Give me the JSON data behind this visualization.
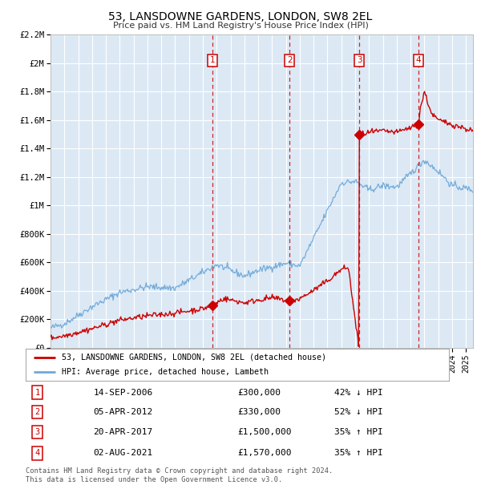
{
  "title": "53, LANSDOWNE GARDENS, LONDON, SW8 2EL",
  "subtitle": "Price paid vs. HM Land Registry's House Price Index (HPI)",
  "ylim": [
    0,
    2200000
  ],
  "xlim_start": 1995.0,
  "xlim_end": 2025.5,
  "yticks": [
    0,
    200000,
    400000,
    600000,
    800000,
    1000000,
    1200000,
    1400000,
    1600000,
    1800000,
    2000000,
    2200000
  ],
  "ytick_labels": [
    "£0",
    "£200K",
    "£400K",
    "£600K",
    "£800K",
    "£1M",
    "£1.2M",
    "£1.4M",
    "£1.6M",
    "£1.8M",
    "£2M",
    "£2.2M"
  ],
  "background_color": "#ffffff",
  "plot_bg_color": "#dce9f5",
  "grid_color": "#ffffff",
  "hpi_line_color": "#6fa8d8",
  "price_line_color": "#cc0000",
  "transaction_marker_color": "#cc0000",
  "dashed_line_color": "#cc0000",
  "transactions": [
    {
      "num": 1,
      "date": "14-SEP-2006",
      "price": 300000,
      "year": 2006.71,
      "label": "1"
    },
    {
      "num": 2,
      "date": "05-APR-2012",
      "price": 330000,
      "year": 2012.26,
      "label": "2"
    },
    {
      "num": 3,
      "date": "20-APR-2017",
      "price": 1500000,
      "year": 2017.3,
      "label": "3"
    },
    {
      "num": 4,
      "date": "02-AUG-2021",
      "price": 1570000,
      "year": 2021.58,
      "label": "4"
    }
  ],
  "legend_line1": "53, LANSDOWNE GARDENS, LONDON, SW8 2EL (detached house)",
  "legend_line2": "HPI: Average price, detached house, Lambeth",
  "footer1": "Contains HM Land Registry data © Crown copyright and database right 2024.",
  "footer2": "This data is licensed under the Open Government Licence v3.0.",
  "table_rows": [
    {
      "num": "1",
      "date": "14-SEP-2006",
      "price": "£300,000",
      "pct": "42% ↓ HPI"
    },
    {
      "num": "2",
      "date": "05-APR-2012",
      "price": "£330,000",
      "pct": "52% ↓ HPI"
    },
    {
      "num": "3",
      "date": "20-APR-2017",
      "price": "£1,500,000",
      "pct": "35% ↑ HPI"
    },
    {
      "num": "4",
      "date": "02-AUG-2021",
      "price": "£1,570,000",
      "pct": "35% ↑ HPI"
    }
  ]
}
